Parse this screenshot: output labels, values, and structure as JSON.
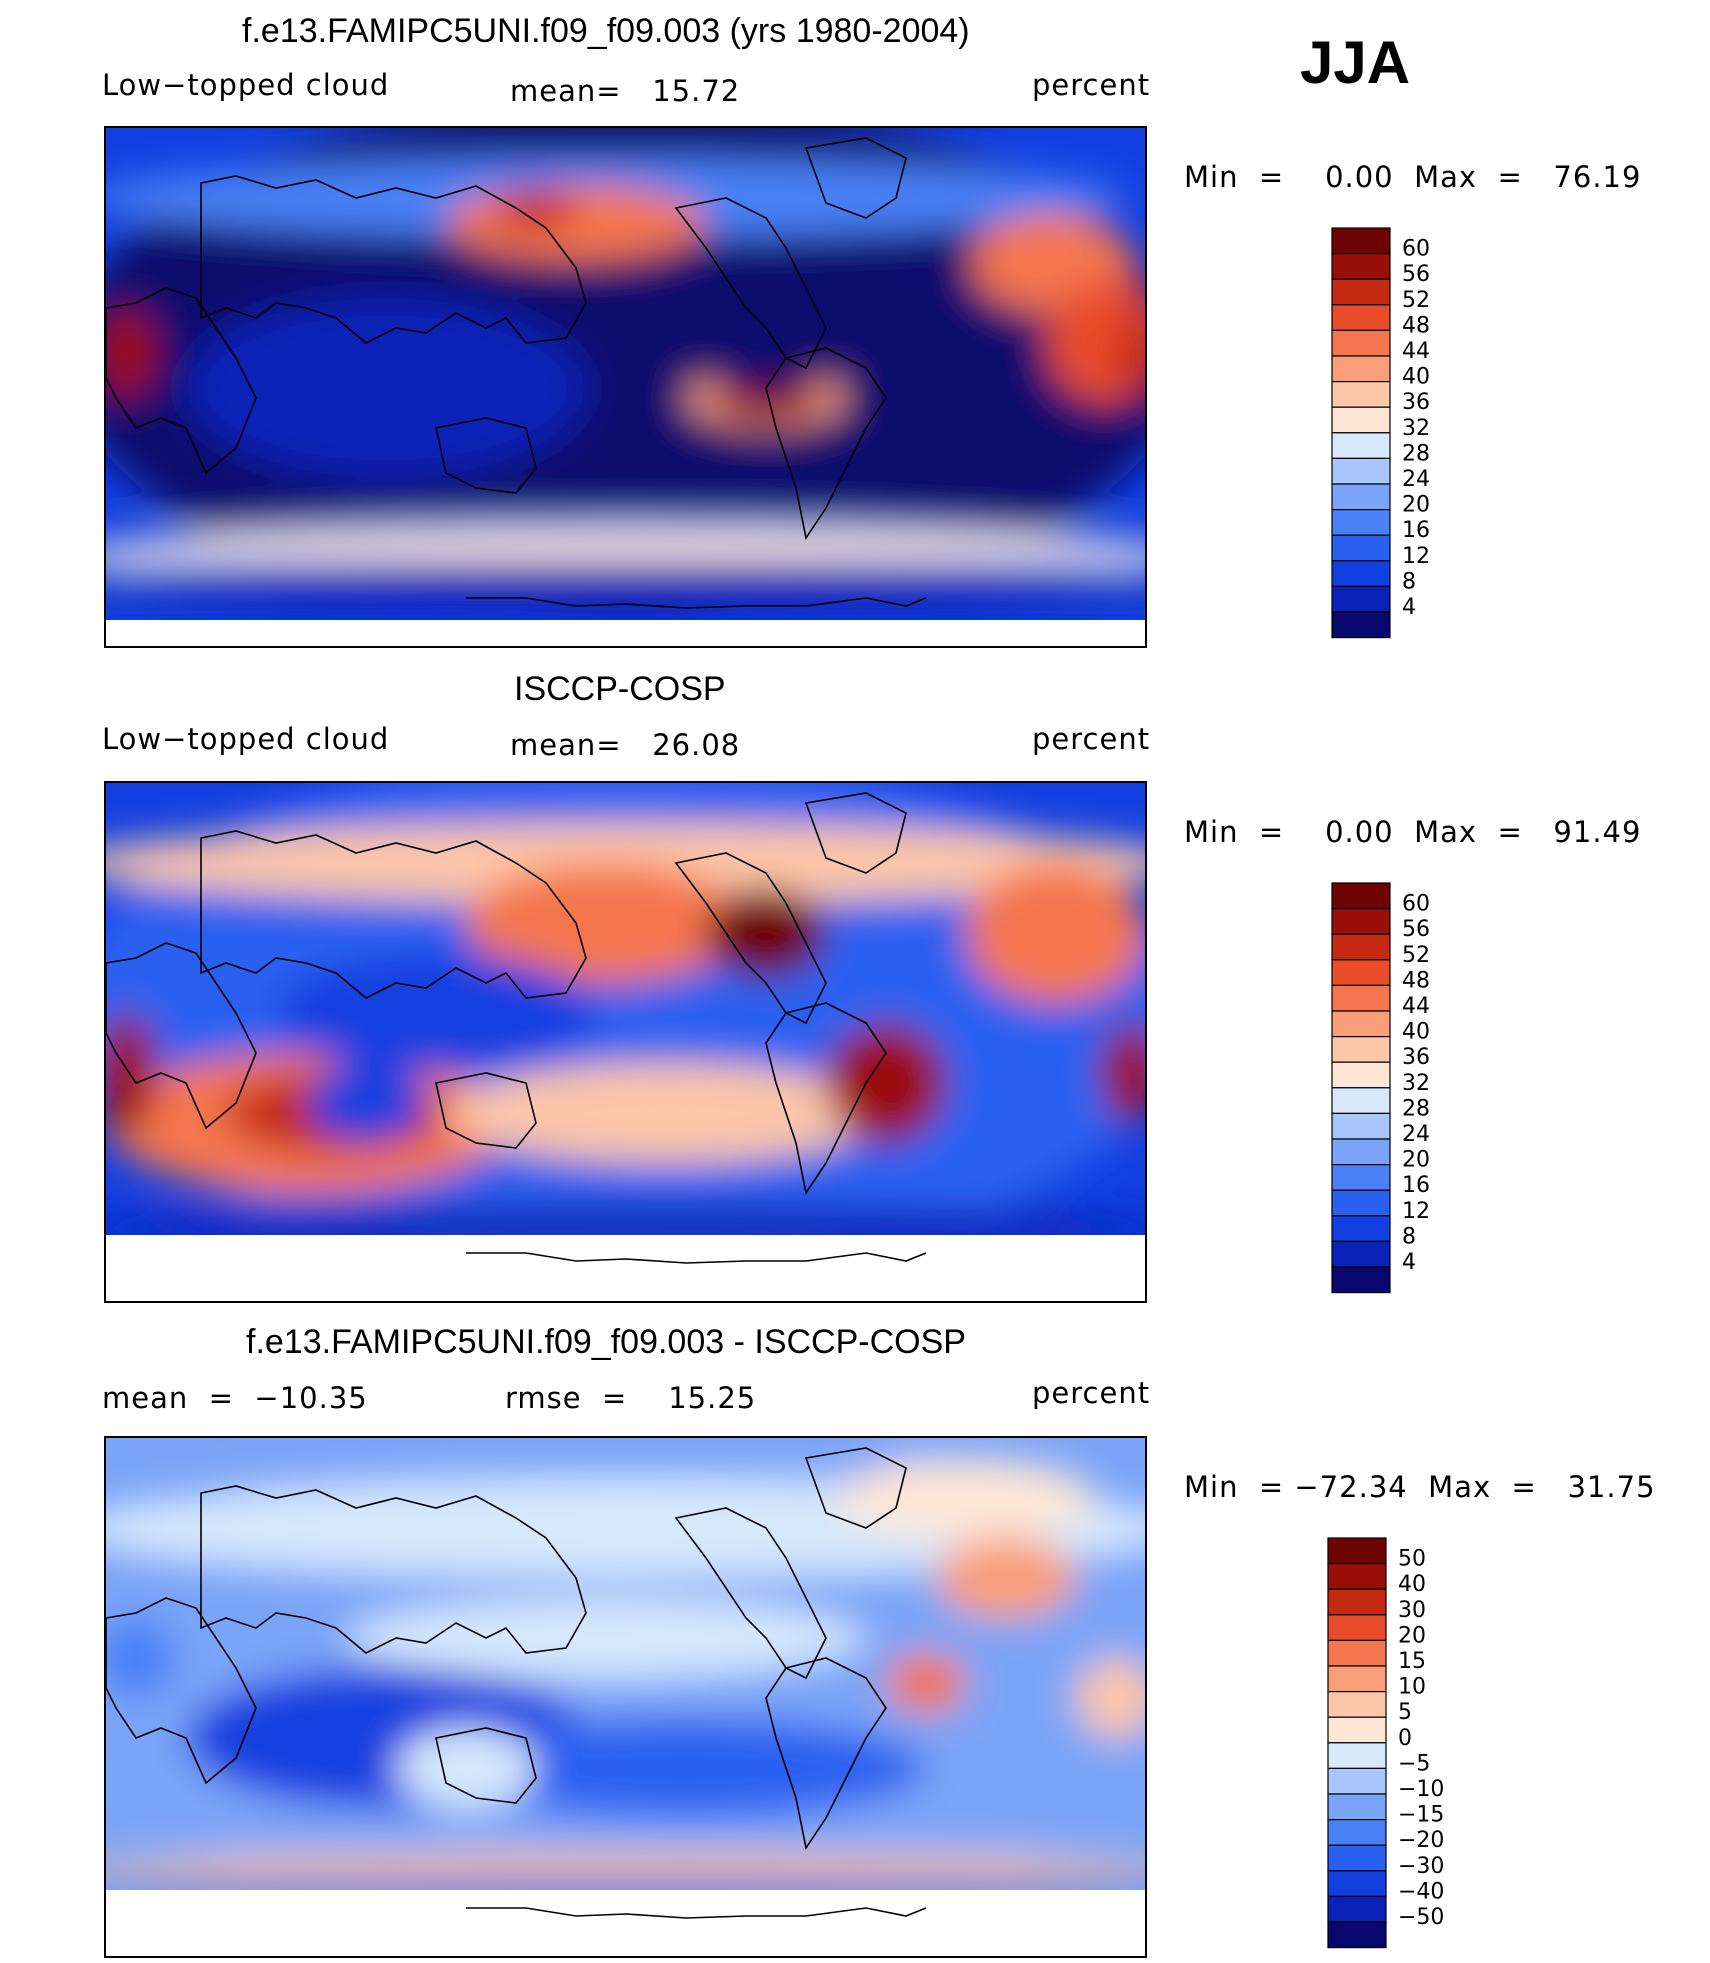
{
  "season": "JJA",
  "panels": [
    {
      "id": "model",
      "title": "f.e13.FAMIPC5UNI.f09_f09.003 (yrs 1980-2004)",
      "left": "Low−topped cloud",
      "center": "mean=   15.72",
      "right": "percent",
      "minmax": "Min  =    0.00  Max  =   76.19",
      "colorbar_labels": [
        "60",
        "56",
        "52",
        "48",
        "44",
        "40",
        "36",
        "32",
        "28",
        "24",
        "20",
        "16",
        "12",
        "8",
        "4"
      ]
    },
    {
      "id": "obs",
      "title": "ISCCP-COSP",
      "left": "Low−topped cloud",
      "center": "mean=   26.08",
      "right": "percent",
      "minmax": "Min  =    0.00  Max  =   91.49",
      "colorbar_labels": [
        "60",
        "56",
        "52",
        "48",
        "44",
        "40",
        "36",
        "32",
        "28",
        "24",
        "20",
        "16",
        "12",
        "8",
        "4"
      ]
    },
    {
      "id": "diff",
      "title": "f.e13.FAMIPC5UNI.f09_f09.003 - ISCCP-COSP",
      "left": "mean  =  −10.35",
      "center": "rmse  =    15.25",
      "right": "percent",
      "minmax": "Min  = −72.34  Max  =   31.75",
      "colorbar_labels": [
        "50",
        "40",
        "30",
        "20",
        "15",
        "10",
        "5",
        "0",
        "−5",
        "−10",
        "−15",
        "−20",
        "−30",
        "−40",
        "−50"
      ]
    }
  ],
  "colors": {
    "sequential": [
      "#08086e",
      "#0a22b8",
      "#1240e0",
      "#2a60f0",
      "#4a80f6",
      "#7aa4f8",
      "#a8c6fb",
      "#d6e8fc",
      "#fde6d6",
      "#fcc6a8",
      "#f99e78",
      "#f4764e",
      "#e84c2a",
      "#c42a12",
      "#9a0e08",
      "#6e0404"
    ],
    "diverging": [
      "#08086e",
      "#0a22b8",
      "#1240e0",
      "#2a60f0",
      "#4a80f6",
      "#7aa4f8",
      "#a8c6fb",
      "#d6e8fc",
      "#fde6d6",
      "#fcc6a8",
      "#f99e78",
      "#f4764e",
      "#e84c2a",
      "#c42a12",
      "#9a0e08",
      "#6e0404"
    ]
  }
}
